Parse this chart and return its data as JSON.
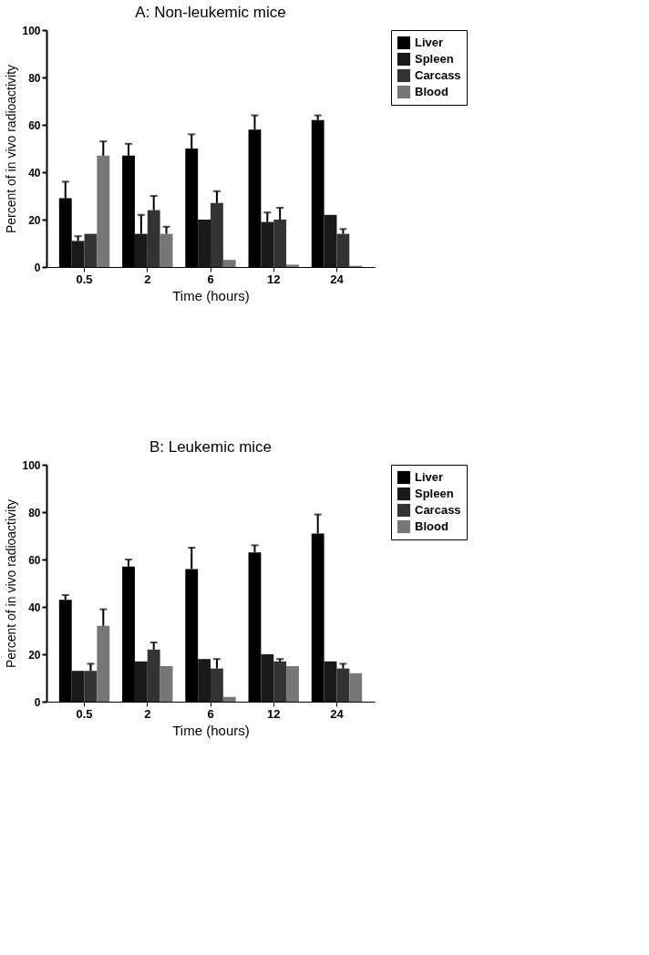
{
  "chart_data": [
    {
      "type": "bar",
      "title": "A:  Non-leukemic mice",
      "xlabel": "Time (hours)",
      "ylabel": "Percent of in vivo  radioactivity",
      "categories": [
        "0.5",
        "2",
        "6",
        "12",
        "24"
      ],
      "ylim": [
        0,
        100
      ],
      "yticks": [
        0,
        20,
        40,
        60,
        80,
        100
      ],
      "legend": "right",
      "grid": false,
      "series": [
        {
          "name": "Liver",
          "color": "#000000",
          "values": [
            29,
            47,
            50,
            58,
            62
          ],
          "errors": [
            [
              29,
              36
            ],
            [
              47,
              52
            ],
            [
              50,
              56
            ],
            [
              58,
              64
            ],
            [
              62,
              64
            ]
          ]
        },
        {
          "name": "Spleen",
          "color": "#1a1a1a",
          "values": [
            11,
            14,
            20,
            19,
            22
          ],
          "errors": [
            [
              11,
              13
            ],
            [
              14,
              22
            ],
            null,
            [
              19,
              23
            ],
            null
          ]
        },
        {
          "name": "Carcass",
          "color": "#333333",
          "values": [
            14,
            24,
            27,
            20,
            14
          ],
          "errors": [
            null,
            [
              24,
              30
            ],
            [
              27,
              32
            ],
            [
              20,
              25
            ],
            [
              14,
              16
            ]
          ]
        },
        {
          "name": "Blood",
          "color": "#777777",
          "values": [
            47,
            14,
            3,
            1,
            0.5
          ],
          "errors": [
            [
              47,
              53
            ],
            [
              14,
              17
            ],
            null,
            null,
            null
          ]
        }
      ]
    },
    {
      "type": "bar",
      "title": "B:  Leukemic mice",
      "xlabel": "Time (hours)",
      "ylabel": "Percent of in vivo  radioactivity",
      "categories": [
        "0.5",
        "2",
        "6",
        "12",
        "24"
      ],
      "ylim": [
        0,
        100
      ],
      "yticks": [
        0,
        20,
        40,
        60,
        80,
        100
      ],
      "legend": "right",
      "grid": false,
      "series": [
        {
          "name": "Liver",
          "color": "#000000",
          "values": [
            43,
            57,
            56,
            63,
            71
          ],
          "errors": [
            [
              43,
              45
            ],
            [
              57,
              60
            ],
            [
              56,
              65
            ],
            [
              63,
              66
            ],
            [
              71,
              79
            ]
          ]
        },
        {
          "name": "Spleen",
          "color": "#1a1a1a",
          "values": [
            13,
            17,
            18,
            20,
            17
          ],
          "errors": [
            null,
            null,
            null,
            null,
            null
          ]
        },
        {
          "name": "Carcass",
          "color": "#333333",
          "values": [
            13,
            22,
            14,
            17,
            14
          ],
          "errors": [
            [
              13,
              16
            ],
            [
              22,
              25
            ],
            [
              14,
              18
            ],
            [
              17,
              18
            ],
            [
              14,
              16
            ]
          ]
        },
        {
          "name": "Blood",
          "color": "#777777",
          "values": [
            32,
            15,
            2,
            15,
            12
          ],
          "errors": [
            [
              32,
              39
            ],
            null,
            null,
            null,
            null
          ]
        }
      ]
    }
  ]
}
